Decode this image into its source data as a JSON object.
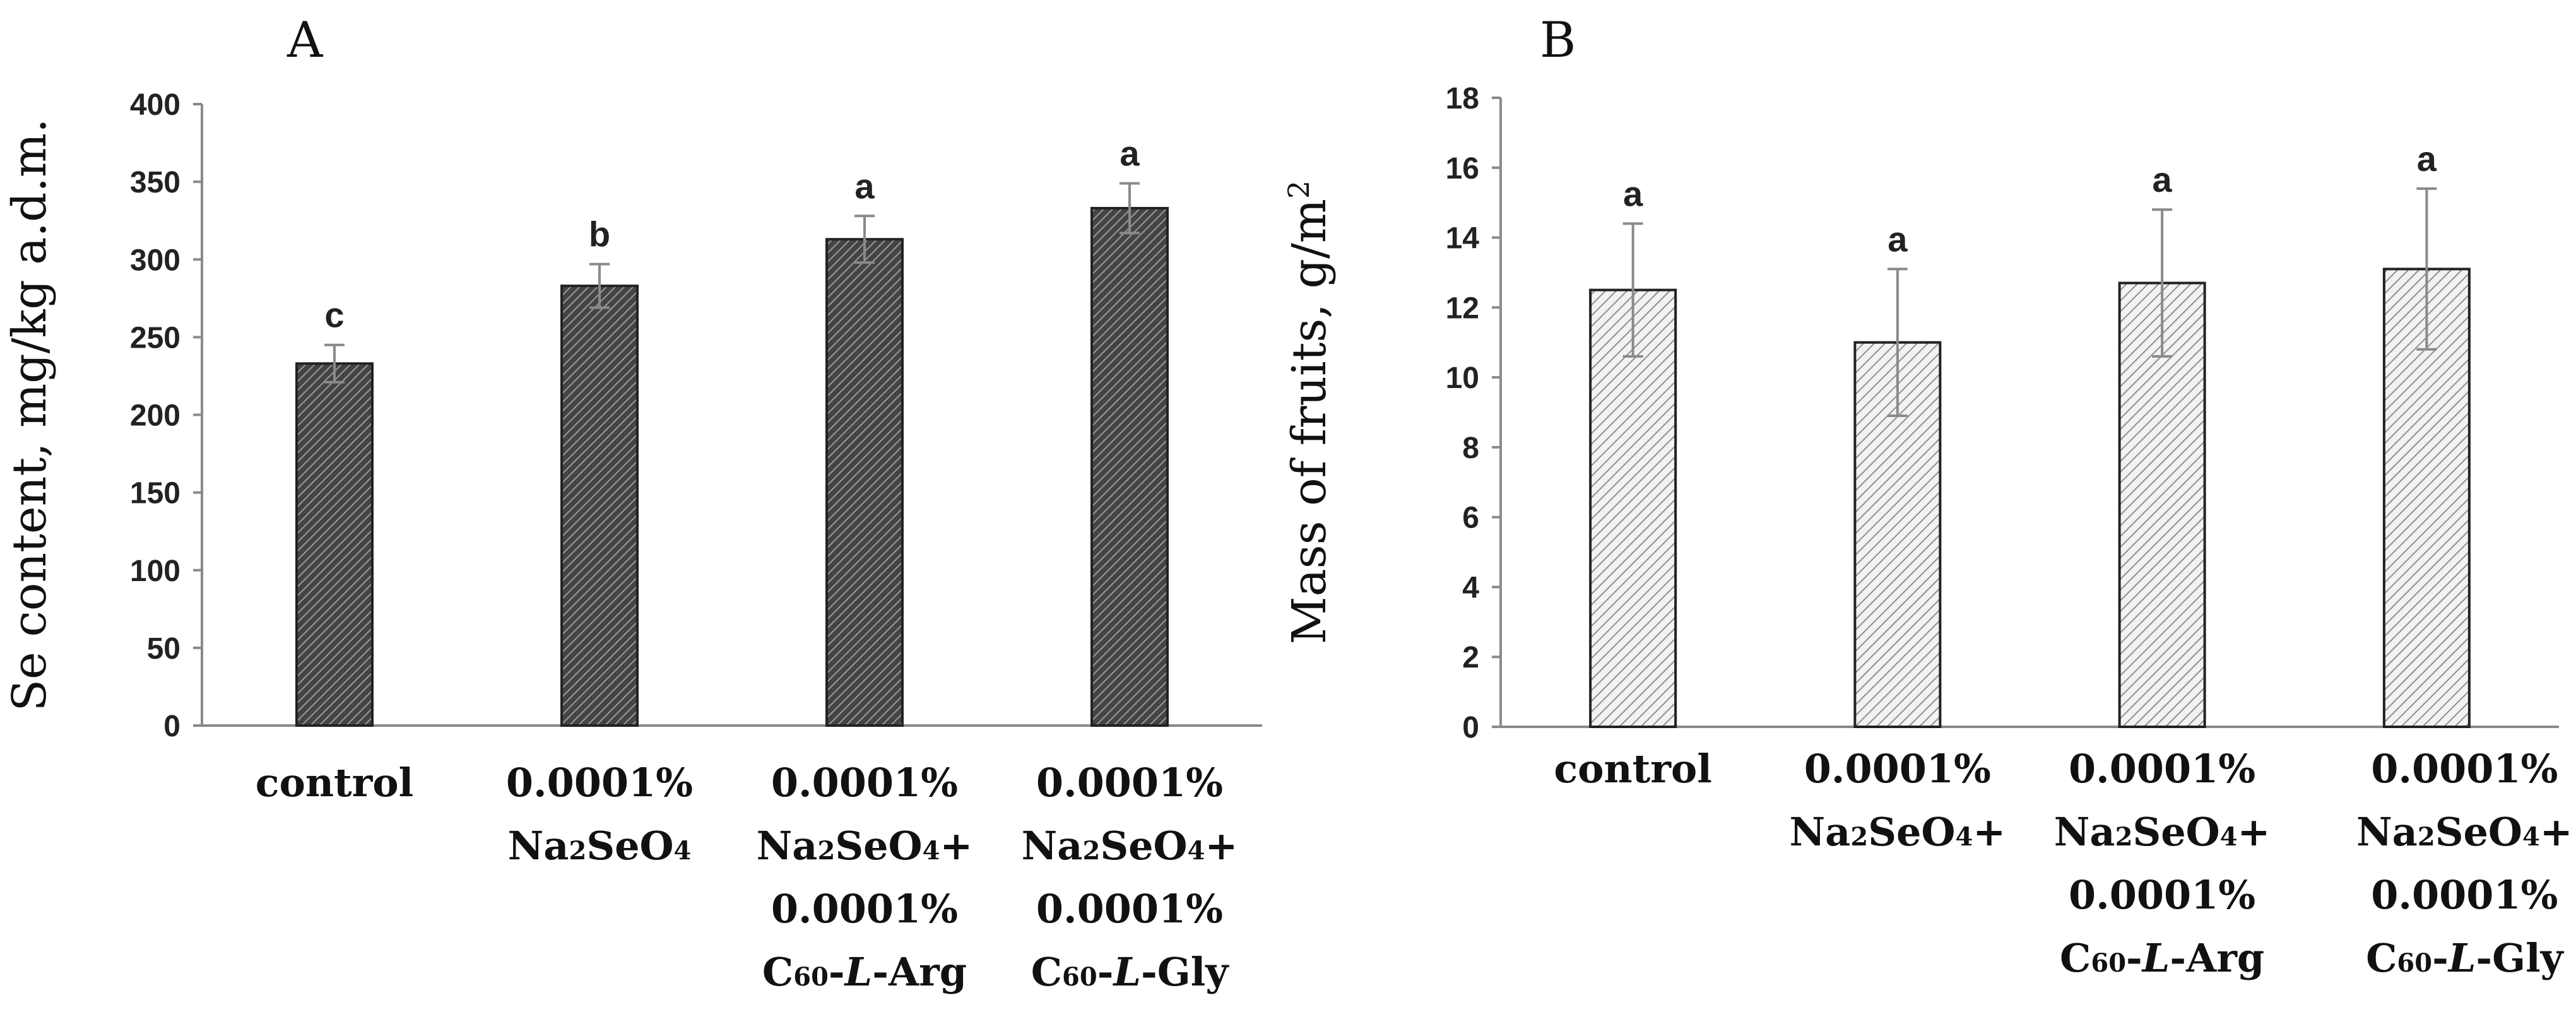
{
  "chart_data": [
    {
      "type": "bar",
      "panel": "A",
      "ylabel": "Se content, mg/kg a.d.m.",
      "ylim": [
        0,
        400
      ],
      "yticks": [
        0,
        50,
        100,
        150,
        200,
        250,
        300,
        350,
        400
      ],
      "categories": [
        [
          "control"
        ],
        [
          "0.0001%",
          "Na2SeO4"
        ],
        [
          "0.0001%",
          "Na2SeO4+",
          "0.0001%",
          "C60-L-Arg"
        ],
        [
          "0.0001%",
          "Na2SeO4+",
          "0.0001%",
          "C60-L-Gly"
        ]
      ],
      "values": [
        233,
        283,
        313,
        333
      ],
      "errors": [
        12,
        14,
        15,
        16
      ],
      "significance": [
        "c",
        "b",
        "a",
        "a"
      ],
      "bar_fill": "#555555"
    },
    {
      "type": "bar",
      "panel": "B",
      "ylabel": "Mass of fruits, g/m²",
      "ylim": [
        0,
        18
      ],
      "yticks": [
        0,
        2,
        4,
        6,
        8,
        10,
        12,
        14,
        16,
        18
      ],
      "categories": [
        [
          "control"
        ],
        [
          "0.0001%",
          "Na2SeO4+"
        ],
        [
          "0.0001%",
          "Na2SeO4+",
          "0.0001%",
          "C60-L-Arg"
        ],
        [
          "0.0001%",
          "Na2SeO4+",
          "0.0001%",
          "C60-L-Gly"
        ]
      ],
      "values": [
        12.5,
        11.0,
        12.7,
        13.1
      ],
      "errors": [
        1.9,
        2.1,
        2.1,
        2.3
      ],
      "significance": [
        "a",
        "a",
        "a",
        "a"
      ],
      "bar_fill": "#cfcfcf"
    }
  ]
}
